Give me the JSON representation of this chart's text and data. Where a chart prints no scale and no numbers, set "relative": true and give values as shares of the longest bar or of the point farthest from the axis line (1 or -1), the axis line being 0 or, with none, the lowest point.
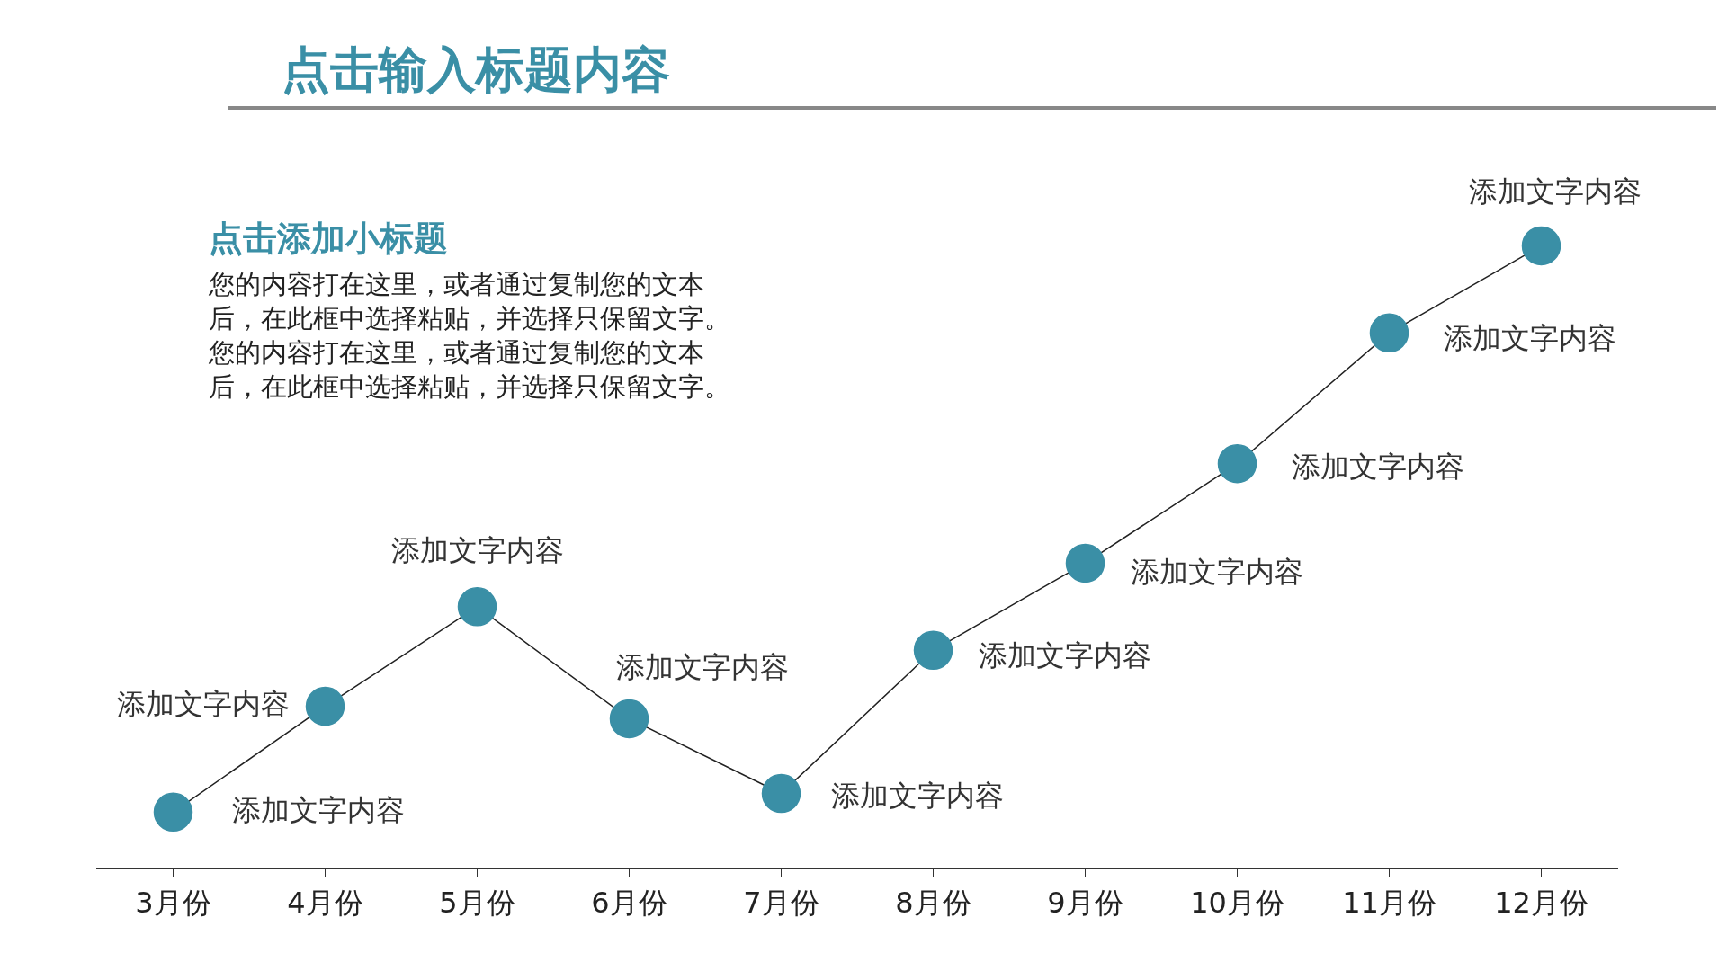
{
  "chart_data": {
    "type": "line",
    "title": "点击输入标题内容",
    "subtitle": "点击添加小标题",
    "relative": true,
    "color": "#3a8fa6",
    "marker": "circle",
    "grid": false,
    "legend": false,
    "categories": [
      "3月份",
      "4月份",
      "5月份",
      "6月份",
      "7月份",
      "8月份",
      "9月份",
      "10月份",
      "11月份",
      "12月份"
    ],
    "series": [
      {
        "color": "#3a8fa6",
        "values": [
          0.09,
          0.26,
          0.42,
          0.24,
          0.12,
          0.35,
          0.49,
          0.65,
          0.86,
          1
        ]
      }
    ],
    "annotations": [
      "您的内容打在这里，或者通过复制您的文本",
      "后，在此框中选择粘贴，并选择只保留文字。",
      "您的内容打在这里，或者通过复制您的文本",
      "后，在此框中选择粘贴，并选择只保留文字。",
      {
        "text": "添加文字内容",
        "x": "3月份",
        "y": 0.09
      },
      {
        "text": "添加文字内容",
        "x": "4月份",
        "y": 0.26
      },
      {
        "text": "添加文字内容",
        "x": "5月份",
        "y": 0.42
      },
      {
        "text": "添加文字内容",
        "x": "6月份",
        "y": 0.24
      },
      {
        "text": "添加文字内容",
        "x": "7月份",
        "y": 0.12
      },
      {
        "text": "添加文字内容",
        "x": "8月份",
        "y": 0.35
      },
      {
        "text": "添加文字内容",
        "x": "9月份",
        "y": 0.49
      },
      {
        "text": "添加文字内容",
        "x": "10月份",
        "y": 0.65
      },
      {
        "text": "添加文字内容",
        "x": "11月份",
        "y": 0.86
      },
      {
        "text": "添加文字内容",
        "x": "12月份",
        "y": 1
      }
    ]
  }
}
